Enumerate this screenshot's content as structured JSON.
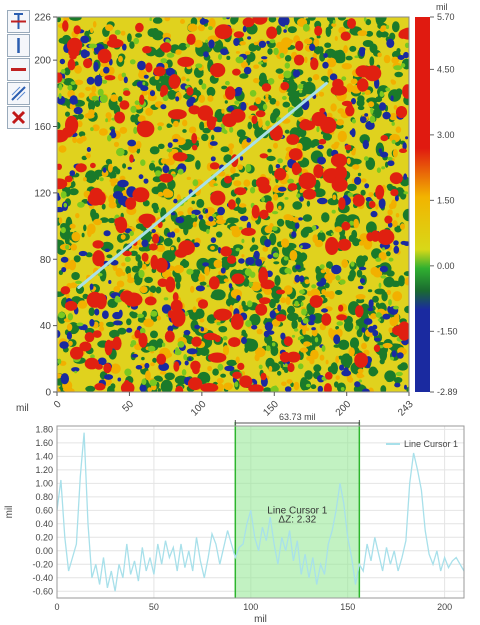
{
  "toolbar": {
    "tools": [
      {
        "name": "add-cursor-icon"
      },
      {
        "name": "vertical-cursor-icon"
      },
      {
        "name": "horizontal-cursor-icon"
      },
      {
        "name": "line-cursor-icon"
      },
      {
        "name": "delete-icon"
      }
    ]
  },
  "chart_data": [
    {
      "type": "heatmap",
      "xlabel": "mil",
      "xlim": [
        0,
        243
      ],
      "ylim": [
        0,
        226
      ],
      "xticks": [
        "0",
        "50",
        "100",
        "150",
        "200",
        "243"
      ],
      "yticks": [
        "0",
        "40",
        "80",
        "120",
        "160",
        "200",
        "226"
      ],
      "colorbar": {
        "unit": "mil",
        "min": -2.89,
        "max": 5.7,
        "ticks": [
          "5.70",
          "4.50",
          "3.00",
          "1.50",
          "0.00",
          "-1.50",
          "-2.89"
        ],
        "colors": [
          "#e02010",
          "#f0b000",
          "#d8d818",
          "#20c020",
          "#1a7a2a",
          "#1a2aa0"
        ]
      },
      "line_cursor": {
        "x1": 15,
        "y1": 63,
        "x2": 186,
        "y2": 186,
        "color": "#a8e0e8"
      }
    },
    {
      "type": "line",
      "xlabel": "mil",
      "ylabel": "mil",
      "xlim": [
        0,
        210
      ],
      "ylim": [
        -0.7,
        1.85
      ],
      "xticks": [
        0,
        50,
        100,
        150,
        200
      ],
      "yticks": [
        "1.80",
        "1.60",
        "1.40",
        "1.20",
        "1.00",
        "0.80",
        "0.60",
        "0.40",
        "0.20",
        "0.00",
        "-0.20",
        "-0.40",
        "-0.60"
      ],
      "grid": true,
      "legend": {
        "position": "top-right",
        "entries": [
          "Line Cursor 1"
        ]
      },
      "series": [
        {
          "name": "Line Cursor 1",
          "color": "#a8e0ea",
          "x": [
            0,
            2,
            4,
            6,
            8,
            10,
            12,
            14,
            16,
            18,
            20,
            22,
            24,
            26,
            28,
            30,
            32,
            34,
            36,
            38,
            40,
            42,
            44,
            46,
            48,
            50,
            52,
            54,
            56,
            58,
            60,
            62,
            64,
            66,
            68,
            70,
            72,
            74,
            76,
            78,
            80,
            82,
            84,
            86,
            88,
            90,
            92,
            94,
            96,
            98,
            100,
            102,
            104,
            106,
            108,
            110,
            112,
            114,
            116,
            118,
            120,
            122,
            124,
            126,
            128,
            130,
            132,
            134,
            136,
            138,
            140,
            142,
            144,
            146,
            148,
            150,
            152,
            154,
            156,
            158,
            160,
            162,
            164,
            166,
            168,
            170,
            172,
            174,
            176,
            178,
            180,
            182,
            184,
            186,
            188,
            190,
            192,
            194,
            196,
            198,
            200,
            202,
            204,
            206,
            208,
            210
          ],
          "y": [
            0.6,
            1.05,
            0.2,
            -0.3,
            -0.1,
            0.1,
            1.1,
            1.75,
            0.4,
            -0.4,
            -0.2,
            -0.5,
            -0.1,
            -0.55,
            -0.3,
            -0.6,
            -0.2,
            -0.4,
            0.1,
            -0.35,
            -0.15,
            -0.45,
            0.05,
            -0.3,
            -0.1,
            -0.35,
            0.1,
            -0.2,
            0.15,
            -0.1,
            0.05,
            -0.3,
            0.1,
            -0.25,
            0.0,
            -0.3,
            0.2,
            -0.15,
            -0.4,
            -0.1,
            0.25,
            0.1,
            -0.2,
            0.05,
            0.3,
            0.1,
            -0.1,
            0.05,
            0.1,
            0.4,
            0.6,
            0.2,
            0.0,
            0.35,
            0.15,
            0.5,
            0.1,
            -0.2,
            0.2,
            0.0,
            0.3,
            -0.15,
            0.15,
            -0.35,
            -0.05,
            -0.4,
            -0.1,
            -0.5,
            -0.2,
            -0.35,
            0.1,
            0.3,
            0.6,
            1.0,
            0.7,
            0.2,
            -0.1,
            -0.5,
            -0.2,
            -0.3,
            0.1,
            -0.15,
            0.2,
            -0.05,
            -0.3,
            0.05,
            -0.2,
            0.0,
            -0.3,
            -0.1,
            0.15,
            1.0,
            1.45,
            1.2,
            0.9,
            0.3,
            -0.05,
            -0.2,
            0.0,
            -0.3,
            -0.1,
            -0.25,
            -0.15,
            -0.1,
            -0.2,
            -0.3
          ]
        }
      ],
      "cursor": {
        "x1": 92,
        "x2": 156,
        "span_label": "63.73 mil",
        "label": "Line Cursor 1",
        "delta_label": "ΔZ: 2.32"
      }
    }
  ]
}
